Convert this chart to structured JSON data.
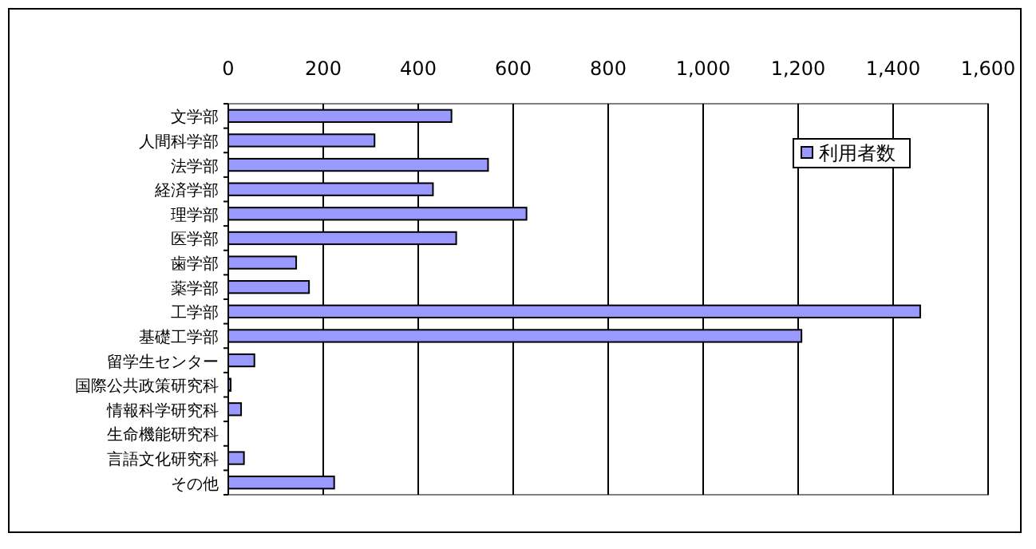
{
  "chart_data": {
    "type": "bar",
    "orientation": "horizontal",
    "categories": [
      "文学部",
      "人間科学部",
      "法学部",
      "経済学部",
      "理学部",
      "医学部",
      "歯学部",
      "薬学部",
      "工学部",
      "基礎工学部",
      "留学生センター",
      "国際公共政策研究科",
      "情報科学研究科",
      "生命機能研究科",
      "言語文化研究科",
      "その他"
    ],
    "series": [
      {
        "name": "利用者数",
        "color": "#9999ff",
        "values": [
          470,
          308,
          547,
          431,
          628,
          480,
          143,
          170,
          1457,
          1207,
          55,
          5,
          27,
          0,
          33,
          223
        ]
      }
    ],
    "xlim": [
      0,
      1600
    ],
    "xticks": [
      0,
      200,
      400,
      600,
      800,
      {
        "value": 1000,
        "label": "1,000"
      },
      {
        "value": 1200,
        "label": "1,200"
      },
      {
        "value": 1400,
        "label": "1,400"
      },
      {
        "value": 1600,
        "label": "1,600"
      }
    ],
    "grid": "x",
    "legend": "top right"
  }
}
